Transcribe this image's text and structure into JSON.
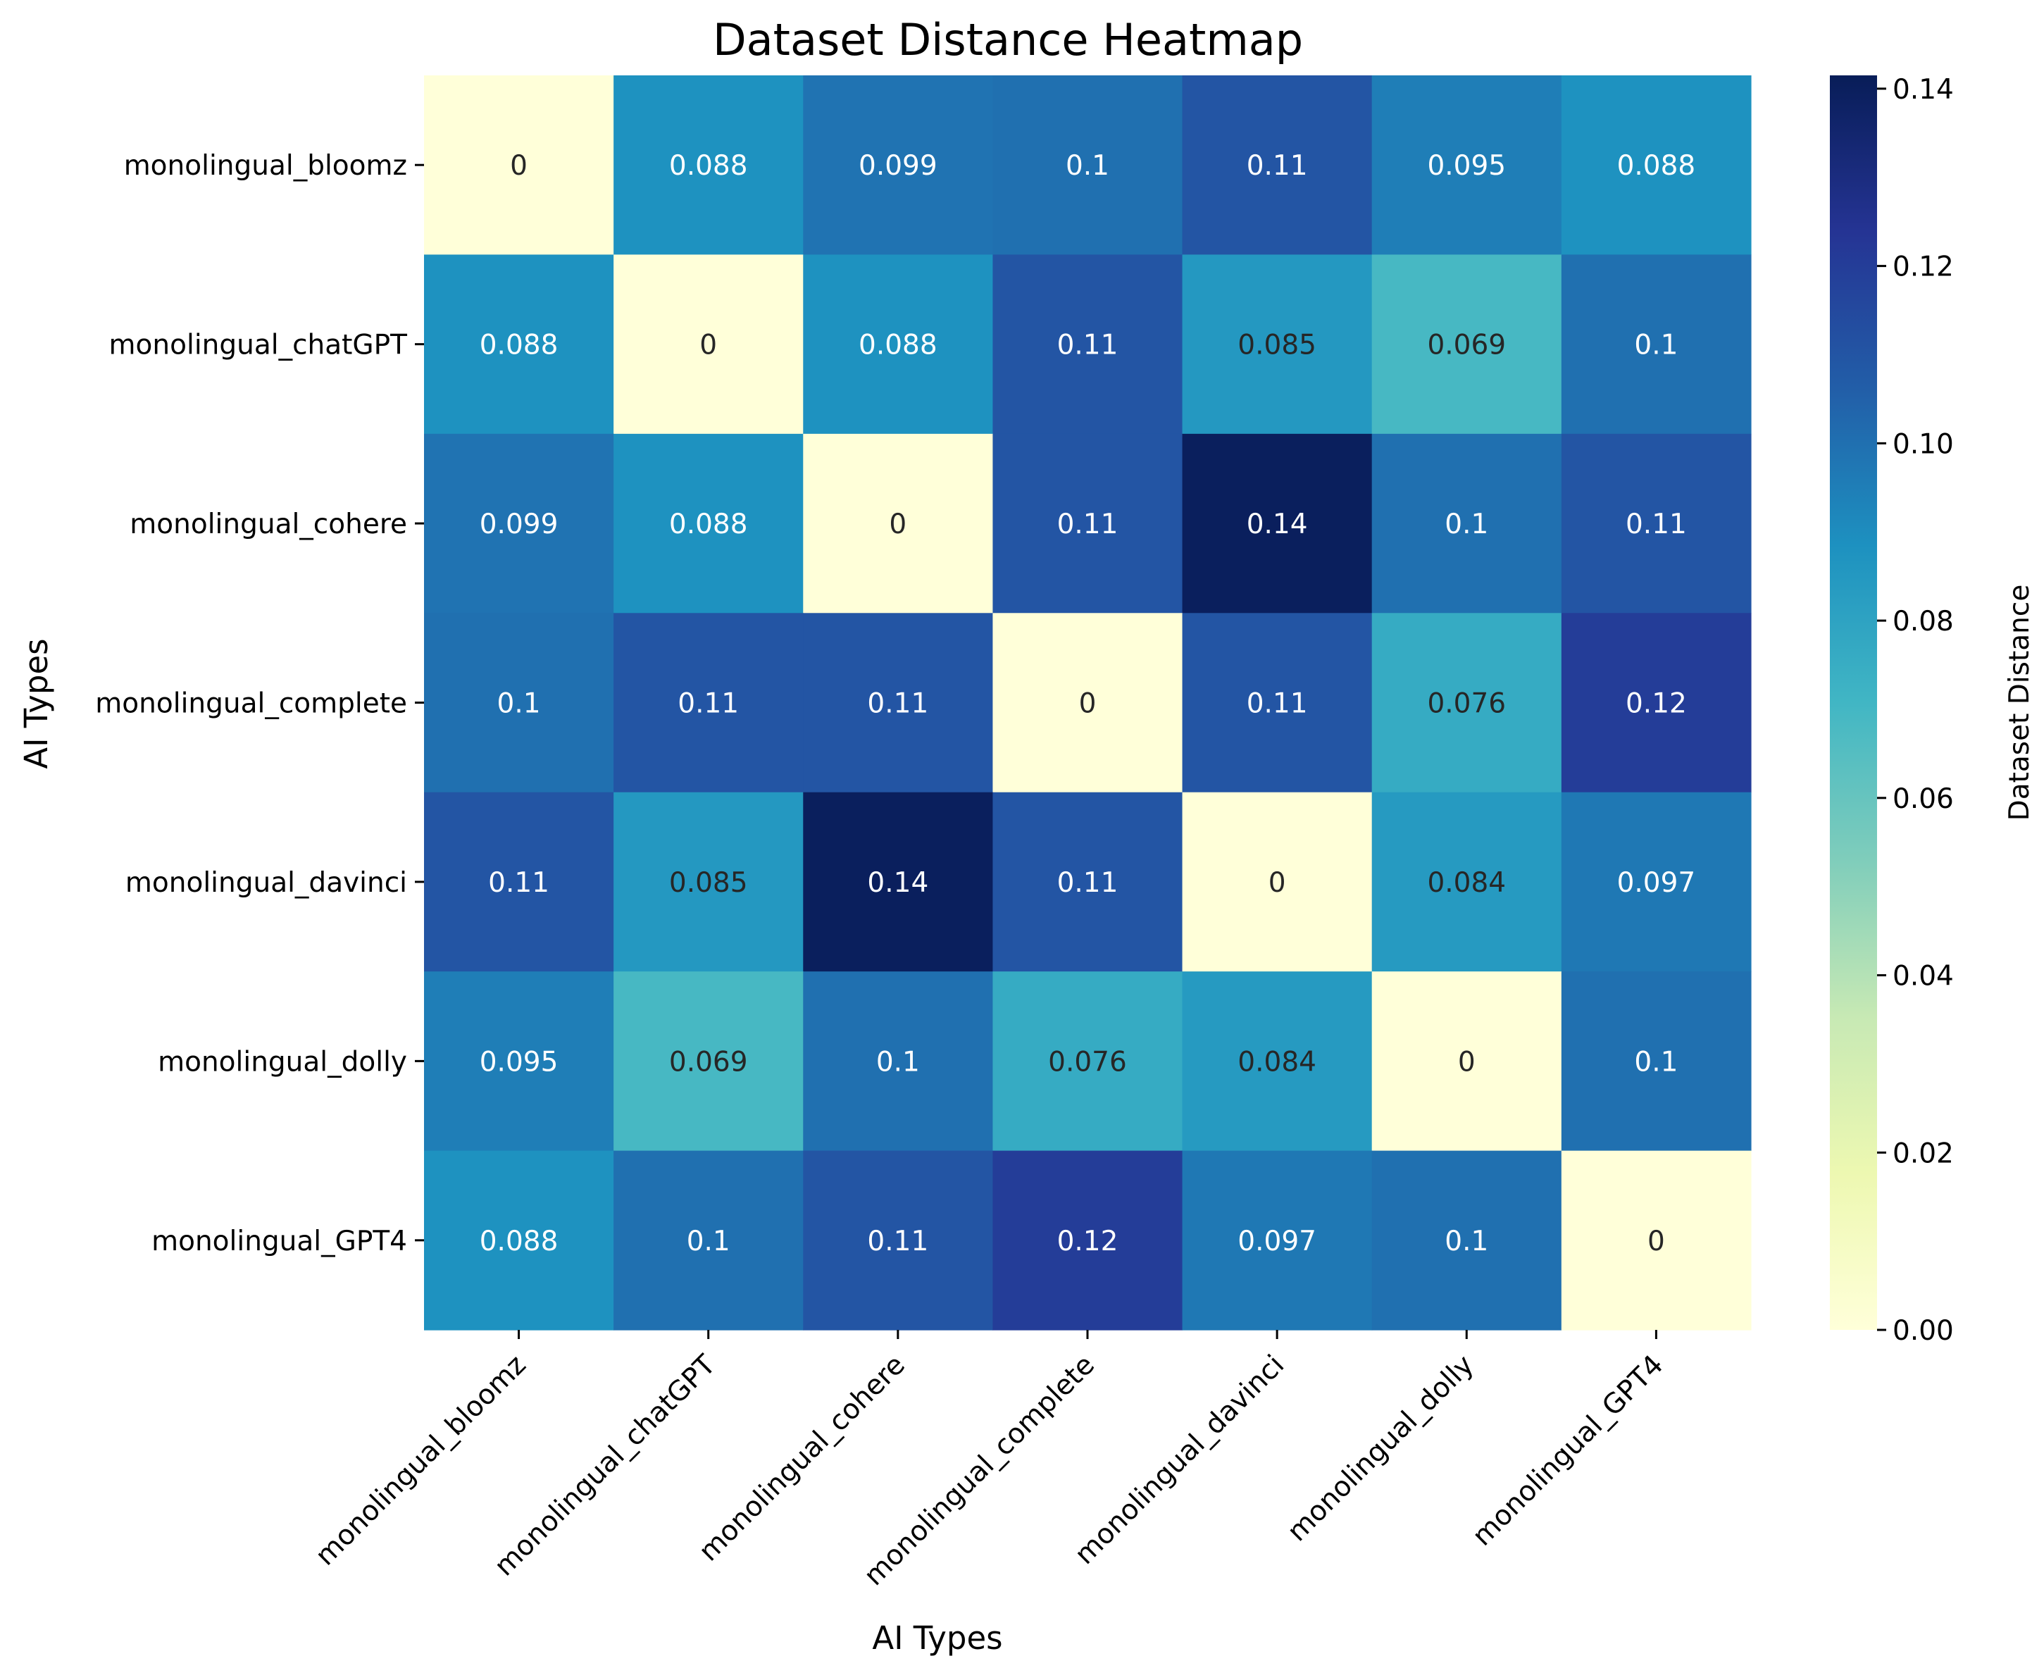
{
  "chart_data": {
    "type": "heatmap",
    "title": "Dataset Distance Heatmap",
    "xlabel": "AI Types",
    "ylabel": "AI Types",
    "rows": [
      "monolingual_bloomz",
      "monolingual_chatGPT",
      "monolingual_cohere",
      "monolingual_complete",
      "monolingual_davinci",
      "monolingual_dolly",
      "monolingual_GPT4"
    ],
    "columns": [
      "monolingual_bloomz",
      "monolingual_chatGPT",
      "monolingual_cohere",
      "monolingual_complete",
      "monolingual_davinci",
      "monolingual_dolly",
      "monolingual_GPT4"
    ],
    "values": [
      [
        0,
        0.088,
        0.099,
        0.1,
        0.11,
        0.095,
        0.088
      ],
      [
        0.088,
        0,
        0.088,
        0.11,
        0.085,
        0.069,
        0.1
      ],
      [
        0.099,
        0.088,
        0,
        0.11,
        0.14,
        0.1,
        0.11
      ],
      [
        0.1,
        0.11,
        0.11,
        0,
        0.11,
        0.076,
        0.12
      ],
      [
        0.11,
        0.085,
        0.14,
        0.11,
        0,
        0.084,
        0.097
      ],
      [
        0.095,
        0.069,
        0.1,
        0.076,
        0.084,
        0,
        0.1
      ],
      [
        0.088,
        0.1,
        0.11,
        0.12,
        0.097,
        0.1,
        0
      ]
    ],
    "annotations": [
      [
        "0",
        "0.088",
        "0.099",
        "0.1",
        "0.11",
        "0.095",
        "0.088"
      ],
      [
        "0.088",
        "0",
        "0.088",
        "0.11",
        "0.085",
        "0.069",
        "0.1"
      ],
      [
        "0.099",
        "0.088",
        "0",
        "0.11",
        "0.14",
        "0.1",
        "0.11"
      ],
      [
        "0.1",
        "0.11",
        "0.11",
        "0",
        "0.11",
        "0.076",
        "0.12"
      ],
      [
        "0.11",
        "0.085",
        "0.14",
        "0.11",
        "0",
        "0.084",
        "0.097"
      ],
      [
        "0.095",
        "0.069",
        "0.1",
        "0.076",
        "0.084",
        "0",
        "0.1"
      ],
      [
        "0.088",
        "0.1",
        "0.11",
        "0.12",
        "0.097",
        "0.1",
        "0"
      ]
    ],
    "colormap": "YlGnBu",
    "colorbar": {
      "label": "Dataset Distance",
      "range": [
        0,
        0.1415
      ],
      "ticks": [
        0.0,
        0.02,
        0.04,
        0.06,
        0.08,
        0.1,
        0.12,
        0.14
      ],
      "tick_labels": [
        "0.00",
        "0.02",
        "0.04",
        "0.06",
        "0.08",
        "0.10",
        "0.12",
        "0.14"
      ]
    },
    "grid": false
  }
}
